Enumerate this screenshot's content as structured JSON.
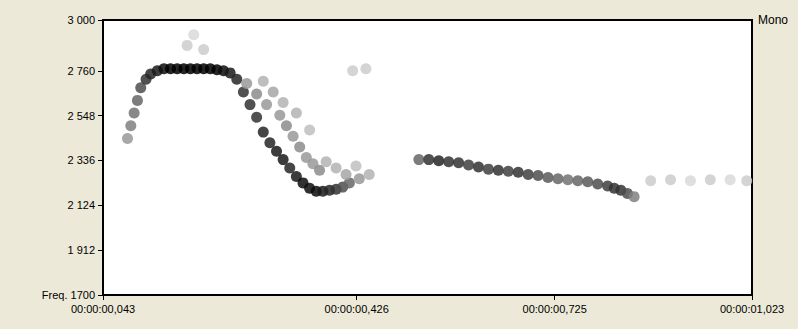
{
  "chart_data": {
    "type": "scatter",
    "annotations": [
      "Mono"
    ],
    "color": "#000000",
    "marker": "circle",
    "grid": false,
    "xlim": [
      0.043,
      1.023
    ],
    "xticks": [
      {
        "value": 0.043,
        "label": "00:00:00,043"
      },
      {
        "value": 0.426,
        "label": "00:00:00,426"
      },
      {
        "value": 0.725,
        "label": "00:00:00,725"
      },
      {
        "value": 1.023,
        "label": "00:00:01,023"
      }
    ],
    "ylim": [
      1700,
      3000
    ],
    "yticks": [
      {
        "value": 1700,
        "label": "Freq. 1700"
      },
      {
        "value": 1912,
        "label": "1 912"
      },
      {
        "value": 2124,
        "label": "2 124"
      },
      {
        "value": 2336,
        "label": "2 336"
      },
      {
        "value": 2548,
        "label": "2 548"
      },
      {
        "value": 2760,
        "label": "2 760"
      },
      {
        "value": 3000,
        "label": "3 000"
      }
    ],
    "x": [
      0.08,
      0.085,
      0.09,
      0.095,
      0.1,
      0.108,
      0.115,
      0.125,
      0.135,
      0.145,
      0.155,
      0.165,
      0.175,
      0.185,
      0.195,
      0.205,
      0.215,
      0.225,
      0.235,
      0.17,
      0.18,
      0.195,
      0.245,
      0.255,
      0.265,
      0.275,
      0.285,
      0.295,
      0.305,
      0.315,
      0.325,
      0.335,
      0.345,
      0.355,
      0.365,
      0.375,
      0.385,
      0.395,
      0.405,
      0.415,
      0.43,
      0.445,
      0.26,
      0.275,
      0.29,
      0.3,
      0.31,
      0.32,
      0.33,
      0.34,
      0.35,
      0.36,
      0.37,
      0.38,
      0.395,
      0.41,
      0.425,
      0.315,
      0.335,
      0.285,
      0.355,
      0.42,
      0.44,
      0.52,
      0.535,
      0.55,
      0.565,
      0.58,
      0.595,
      0.61,
      0.625,
      0.64,
      0.655,
      0.67,
      0.685,
      0.7,
      0.715,
      0.73,
      0.745,
      0.76,
      0.775,
      0.79,
      0.805,
      0.815,
      0.825,
      0.835,
      0.845,
      0.87,
      0.9,
      0.93,
      0.96,
      0.99,
      1.015
    ],
    "values": [
      2440,
      2500,
      2560,
      2620,
      2680,
      2720,
      2745,
      2760,
      2770,
      2770,
      2770,
      2770,
      2770,
      2770,
      2770,
      2770,
      2765,
      2760,
      2750,
      2880,
      2930,
      2860,
      2720,
      2660,
      2600,
      2540,
      2470,
      2420,
      2380,
      2340,
      2300,
      2260,
      2230,
      2205,
      2190,
      2190,
      2195,
      2200,
      2210,
      2230,
      2250,
      2270,
      2700,
      2650,
      2600,
      2660,
      2550,
      2500,
      2450,
      2400,
      2350,
      2320,
      2290,
      2330,
      2300,
      2270,
      2310,
      2610,
      2560,
      2710,
      2480,
      2760,
      2770,
      2340,
      2340,
      2335,
      2330,
      2325,
      2315,
      2305,
      2295,
      2290,
      2285,
      2280,
      2270,
      2265,
      2255,
      2250,
      2245,
      2240,
      2235,
      2225,
      2215,
      2205,
      2195,
      2180,
      2165,
      2240,
      2245,
      2240,
      2245,
      2245,
      2240
    ],
    "intensity": [
      0.4,
      0.5,
      0.55,
      0.6,
      0.7,
      0.8,
      0.85,
      0.9,
      0.95,
      1,
      1,
      1,
      1,
      1,
      1,
      1,
      1,
      0.95,
      0.9,
      0.2,
      0.15,
      0.2,
      0.85,
      0.8,
      0.8,
      0.8,
      0.85,
      0.85,
      0.9,
      0.9,
      0.85,
      0.9,
      0.95,
      0.95,
      0.95,
      0.9,
      0.85,
      0.8,
      0.7,
      0.6,
      0.4,
      0.3,
      0.4,
      0.45,
      0.4,
      0.35,
      0.4,
      0.45,
      0.4,
      0.45,
      0.4,
      0.4,
      0.45,
      0.3,
      0.3,
      0.35,
      0.25,
      0.3,
      0.3,
      0.3,
      0.25,
      0.2,
      0.2,
      0.6,
      0.8,
      0.85,
      0.8,
      0.8,
      0.75,
      0.8,
      0.75,
      0.8,
      0.75,
      0.8,
      0.75,
      0.7,
      0.65,
      0.6,
      0.55,
      0.6,
      0.65,
      0.7,
      0.75,
      0.8,
      0.8,
      0.7,
      0.5,
      0.2,
      0.2,
      0.15,
      0.2,
      0.15,
      0.2
    ]
  }
}
